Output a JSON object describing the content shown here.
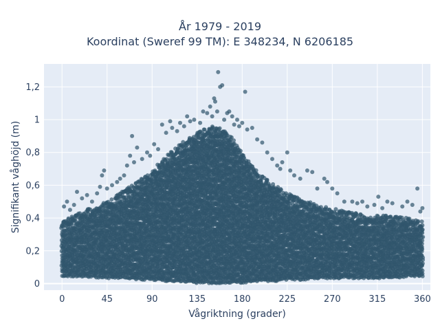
{
  "chart_data": {
    "type": "scatter",
    "title": "År 1979 - 2019",
    "subtitle": "Koordinat (Sweref 99 TM): E 348234, N 6206185",
    "xlabel": "Vågriktning (grader)",
    "ylabel": "Signifikant våghöjd (m)",
    "xlim": [
      -18,
      368
    ],
    "ylim": [
      -0.04,
      1.34
    ],
    "x_ticks": [
      0,
      45,
      90,
      135,
      180,
      225,
      270,
      315,
      360
    ],
    "x_tick_labels": [
      "0",
      "45",
      "90",
      "135",
      "180",
      "225",
      "270",
      "315",
      "360"
    ],
    "y_ticks": [
      0,
      0.2,
      0.4,
      0.6,
      0.8,
      1.0,
      1.2
    ],
    "y_tick_labels": [
      "0",
      "0,2",
      "0,4",
      "0,6",
      "0,8",
      "1",
      "1,2"
    ],
    "grid": true,
    "background": "#e5ecf6",
    "marker_color": "#30566c",
    "marker_opacity": 0.7,
    "series": [
      {
        "band_envelope": {
          "x": [
            0,
            20,
            45,
            60,
            75,
            90,
            105,
            120,
            135,
            150,
            160,
            170,
            180,
            195,
            210,
            225,
            240,
            255,
            270,
            285,
            300,
            315,
            330,
            345,
            360
          ],
          "y_min": [
            0.05,
            0.05,
            0.04,
            0.04,
            0.03,
            0.03,
            0.02,
            0.02,
            0.01,
            0.01,
            0.01,
            0.01,
            0.01,
            0.02,
            0.02,
            0.03,
            0.03,
            0.04,
            0.04,
            0.04,
            0.04,
            0.04,
            0.04,
            0.05,
            0.05
          ],
          "y_max": [
            0.32,
            0.38,
            0.44,
            0.5,
            0.56,
            0.63,
            0.72,
            0.8,
            0.86,
            0.9,
            0.89,
            0.83,
            0.74,
            0.62,
            0.55,
            0.49,
            0.45,
            0.42,
            0.4,
            0.38,
            0.36,
            0.36,
            0.35,
            0.34,
            0.32
          ]
        },
        "outliers": [
          [
            2,
            0.47
          ],
          [
            5,
            0.5
          ],
          [
            8,
            0.45
          ],
          [
            12,
            0.48
          ],
          [
            15,
            0.56
          ],
          [
            20,
            0.52
          ],
          [
            25,
            0.54
          ],
          [
            30,
            0.5
          ],
          [
            35,
            0.55
          ],
          [
            38,
            0.59
          ],
          [
            40,
            0.66
          ],
          [
            45,
            0.58
          ],
          [
            42,
            0.69
          ],
          [
            50,
            0.6
          ],
          [
            55,
            0.62
          ],
          [
            58,
            0.64
          ],
          [
            62,
            0.66
          ],
          [
            65,
            0.72
          ],
          [
            68,
            0.78
          ],
          [
            70,
            0.9
          ],
          [
            72,
            0.74
          ],
          [
            75,
            0.83
          ],
          [
            80,
            0.76
          ],
          [
            85,
            0.8
          ],
          [
            88,
            0.78
          ],
          [
            92,
            0.85
          ],
          [
            96,
            0.82
          ],
          [
            100,
            0.97
          ],
          [
            104,
            0.92
          ],
          [
            108,
            0.99
          ],
          [
            110,
            0.95
          ],
          [
            115,
            0.93
          ],
          [
            118,
            0.98
          ],
          [
            122,
            0.96
          ],
          [
            125,
            1.02
          ],
          [
            128,
            0.99
          ],
          [
            132,
            1.0
          ],
          [
            138,
            0.98
          ],
          [
            141,
            1.05
          ],
          [
            145,
            1.04
          ],
          [
            148,
            1.08
          ],
          [
            150,
            1.02
          ],
          [
            152,
            1.13
          ],
          [
            153,
            1.11
          ],
          [
            155,
            1.05
          ],
          [
            156,
            1.29
          ],
          [
            158,
            1.2
          ],
          [
            160,
            1.21
          ],
          [
            162,
            1.0
          ],
          [
            165,
            1.04
          ],
          [
            167,
            1.05
          ],
          [
            170,
            1.02
          ],
          [
            172,
            0.97
          ],
          [
            175,
            1.0
          ],
          [
            177,
            0.96
          ],
          [
            180,
            0.98
          ],
          [
            183,
            1.17
          ],
          [
            185,
            0.94
          ],
          [
            190,
            0.95
          ],
          [
            195,
            0.88
          ],
          [
            200,
            0.86
          ],
          [
            205,
            0.8
          ],
          [
            210,
            0.76
          ],
          [
            215,
            0.72
          ],
          [
            218,
            0.7
          ],
          [
            220,
            0.74
          ],
          [
            225,
            0.8
          ],
          [
            228,
            0.69
          ],
          [
            232,
            0.66
          ],
          [
            238,
            0.64
          ],
          [
            245,
            0.69
          ],
          [
            250,
            0.68
          ],
          [
            255,
            0.58
          ],
          [
            262,
            0.64
          ],
          [
            265,
            0.62
          ],
          [
            270,
            0.58
          ],
          [
            275,
            0.55
          ],
          [
            282,
            0.5
          ],
          [
            290,
            0.5
          ],
          [
            295,
            0.49
          ],
          [
            300,
            0.5
          ],
          [
            305,
            0.47
          ],
          [
            312,
            0.48
          ],
          [
            316,
            0.53
          ],
          [
            320,
            0.46
          ],
          [
            325,
            0.5
          ],
          [
            330,
            0.49
          ],
          [
            340,
            0.47
          ],
          [
            345,
            0.5
          ],
          [
            350,
            0.48
          ],
          [
            355,
            0.58
          ],
          [
            358,
            0.44
          ],
          [
            360,
            0.46
          ]
        ]
      }
    ]
  }
}
